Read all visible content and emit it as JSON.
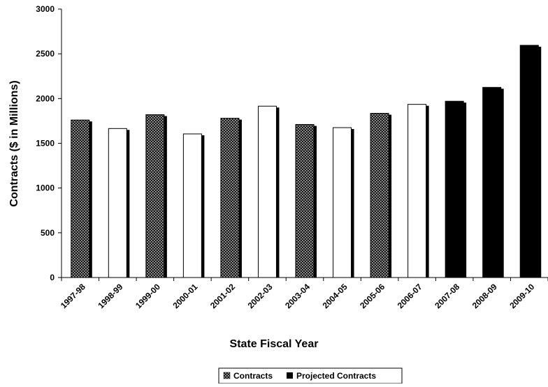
{
  "chart_data": {
    "type": "bar",
    "title": "",
    "xlabel": "State Fiscal Year",
    "ylabel": "Contracts ($ in Millions)",
    "ylim": [
      0,
      3000
    ],
    "yticks": [
      0,
      500,
      1000,
      1500,
      2000,
      2500,
      3000
    ],
    "categories": [
      "1997-98",
      "1998-99",
      "1999-00",
      "2000-01",
      "2001-02",
      "2002-03",
      "2003-04",
      "2004-05",
      "2005-06",
      "2006-07",
      "2007-08",
      "2008-09",
      "2009-10"
    ],
    "values": [
      1760,
      1665,
      1820,
      1605,
      1780,
      1915,
      1710,
      1675,
      1835,
      1935,
      1970,
      2125,
      2595
    ],
    "bar_styles": [
      "dotted",
      "white",
      "dotted",
      "white",
      "dotted",
      "white",
      "dotted",
      "white",
      "dotted",
      "white",
      "black",
      "black",
      "black"
    ],
    "series": [
      {
        "name": "Contracts",
        "style": "dotted"
      },
      {
        "name": "Projected Contracts",
        "style": "black"
      }
    ],
    "legend_position": "bottom",
    "grid": false,
    "colors": {
      "bar_black": "#000000",
      "bar_white": "#ffffff",
      "pattern_dark": "#1a1a1a",
      "pattern_light": "#bdbdbd"
    }
  }
}
